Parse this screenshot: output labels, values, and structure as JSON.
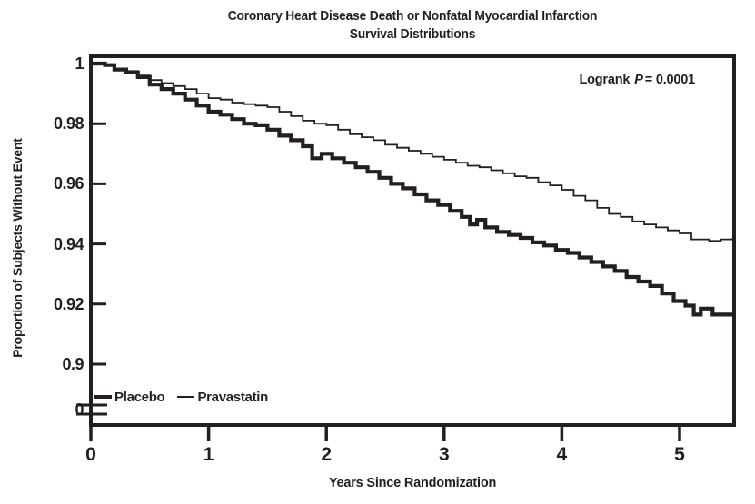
{
  "title": {
    "line1": "Coronary Heart Disease Death or Nonfatal Myocardial Infarction",
    "line2": "Survival Distributions"
  },
  "annotation": {
    "prefix": "Logrank",
    "p_symbol": "P",
    "rest": "= 0.0001"
  },
  "axes": {
    "y_label": "Proportion of Subjects Without Event",
    "x_label": "Years Since Randomization",
    "y_tick_labels": [
      "1",
      "0.98",
      "0.96",
      "0.94",
      "0.92",
      "0.9",
      "0"
    ],
    "x_tick_labels": [
      "0",
      "1",
      "2",
      "3",
      "4",
      "5"
    ]
  },
  "legend": [
    {
      "label": "Placebo",
      "style": "thick"
    },
    {
      "label": "Pravastatin",
      "style": "thin"
    }
  ],
  "colors": {
    "ink": "#231f20",
    "background": "#ffffff"
  },
  "chart_data": {
    "type": "line",
    "subtype": "kaplan-meier-step",
    "title": "Coronary Heart Disease Death or Nonfatal Myocardial Infarction Survival Distributions",
    "xlabel": "Years Since Randomization",
    "ylabel": "Proportion of Subjects Without Event",
    "annotation": "Logrank P = 0.0001",
    "xlim": [
      0,
      5.45
    ],
    "y_axis": {
      "ticks": [
        1,
        0.98,
        0.96,
        0.94,
        0.92,
        0.9
      ],
      "axis_break_to_zero": true,
      "break_label": "0"
    },
    "x_axis": {
      "ticks": [
        0,
        1,
        2,
        3,
        4,
        5
      ]
    },
    "grid": false,
    "legend_position": "inside-bottom-left",
    "series": [
      {
        "name": "Pravastatin",
        "line_weight": "thin",
        "points": [
          [
            0,
            1.0
          ],
          [
            0.12,
            0.9995
          ],
          [
            0.2,
            0.998
          ],
          [
            0.3,
            0.9975
          ],
          [
            0.4,
            0.996
          ],
          [
            0.5,
            0.9945
          ],
          [
            0.6,
            0.9935
          ],
          [
            0.7,
            0.9925
          ],
          [
            0.8,
            0.9915
          ],
          [
            0.9,
            0.99
          ],
          [
            1.0,
            0.9885
          ],
          [
            1.1,
            0.988
          ],
          [
            1.2,
            0.987
          ],
          [
            1.3,
            0.9865
          ],
          [
            1.4,
            0.986
          ],
          [
            1.5,
            0.9855
          ],
          [
            1.6,
            0.984
          ],
          [
            1.7,
            0.9825
          ],
          [
            1.8,
            0.981
          ],
          [
            1.9,
            0.98
          ],
          [
            2.0,
            0.9795
          ],
          [
            2.1,
            0.978
          ],
          [
            2.2,
            0.9765
          ],
          [
            2.3,
            0.9755
          ],
          [
            2.4,
            0.9745
          ],
          [
            2.5,
            0.973
          ],
          [
            2.6,
            0.972
          ],
          [
            2.7,
            0.971
          ],
          [
            2.8,
            0.97
          ],
          [
            2.9,
            0.969
          ],
          [
            3.0,
            0.968
          ],
          [
            3.1,
            0.967
          ],
          [
            3.2,
            0.966
          ],
          [
            3.3,
            0.9655
          ],
          [
            3.4,
            0.9645
          ],
          [
            3.5,
            0.9635
          ],
          [
            3.6,
            0.9625
          ],
          [
            3.7,
            0.962
          ],
          [
            3.8,
            0.9605
          ],
          [
            3.9,
            0.9595
          ],
          [
            4.0,
            0.958
          ],
          [
            4.1,
            0.956
          ],
          [
            4.2,
            0.9545
          ],
          [
            4.3,
            0.952
          ],
          [
            4.4,
            0.95
          ],
          [
            4.5,
            0.949
          ],
          [
            4.6,
            0.9475
          ],
          [
            4.7,
            0.9465
          ],
          [
            4.8,
            0.9455
          ],
          [
            4.9,
            0.9445
          ],
          [
            5.0,
            0.9435
          ],
          [
            5.1,
            0.9415
          ],
          [
            5.25,
            0.941
          ],
          [
            5.35,
            0.9415
          ],
          [
            5.45,
            0.942
          ]
        ]
      },
      {
        "name": "Placebo",
        "line_weight": "thick",
        "points": [
          [
            0,
            1.0
          ],
          [
            0.12,
            0.9995
          ],
          [
            0.2,
            0.998
          ],
          [
            0.3,
            0.997
          ],
          [
            0.4,
            0.9955
          ],
          [
            0.5,
            0.993
          ],
          [
            0.6,
            0.9915
          ],
          [
            0.7,
            0.99
          ],
          [
            0.8,
            0.988
          ],
          [
            0.9,
            0.986
          ],
          [
            1.0,
            0.984
          ],
          [
            1.1,
            0.983
          ],
          [
            1.2,
            0.9815
          ],
          [
            1.3,
            0.98
          ],
          [
            1.4,
            0.9795
          ],
          [
            1.5,
            0.978
          ],
          [
            1.6,
            0.976
          ],
          [
            1.7,
            0.9745
          ],
          [
            1.8,
            0.9725
          ],
          [
            1.88,
            0.9685
          ],
          [
            1.96,
            0.97
          ],
          [
            2.05,
            0.9685
          ],
          [
            2.15,
            0.967
          ],
          [
            2.25,
            0.9655
          ],
          [
            2.35,
            0.964
          ],
          [
            2.45,
            0.962
          ],
          [
            2.55,
            0.96
          ],
          [
            2.65,
            0.9585
          ],
          [
            2.75,
            0.9565
          ],
          [
            2.85,
            0.9545
          ],
          [
            2.95,
            0.953
          ],
          [
            3.05,
            0.951
          ],
          [
            3.15,
            0.949
          ],
          [
            3.22,
            0.9465
          ],
          [
            3.28,
            0.948
          ],
          [
            3.35,
            0.9455
          ],
          [
            3.45,
            0.944
          ],
          [
            3.55,
            0.943
          ],
          [
            3.65,
            0.942
          ],
          [
            3.75,
            0.9405
          ],
          [
            3.85,
            0.9395
          ],
          [
            3.95,
            0.938
          ],
          [
            4.05,
            0.937
          ],
          [
            4.15,
            0.9355
          ],
          [
            4.25,
            0.934
          ],
          [
            4.35,
            0.9325
          ],
          [
            4.45,
            0.931
          ],
          [
            4.55,
            0.929
          ],
          [
            4.65,
            0.9275
          ],
          [
            4.75,
            0.926
          ],
          [
            4.85,
            0.9235
          ],
          [
            4.95,
            0.921
          ],
          [
            5.05,
            0.9195
          ],
          [
            5.12,
            0.9165
          ],
          [
            5.18,
            0.9185
          ],
          [
            5.28,
            0.9165
          ],
          [
            5.45,
            0.916
          ]
        ]
      }
    ]
  }
}
